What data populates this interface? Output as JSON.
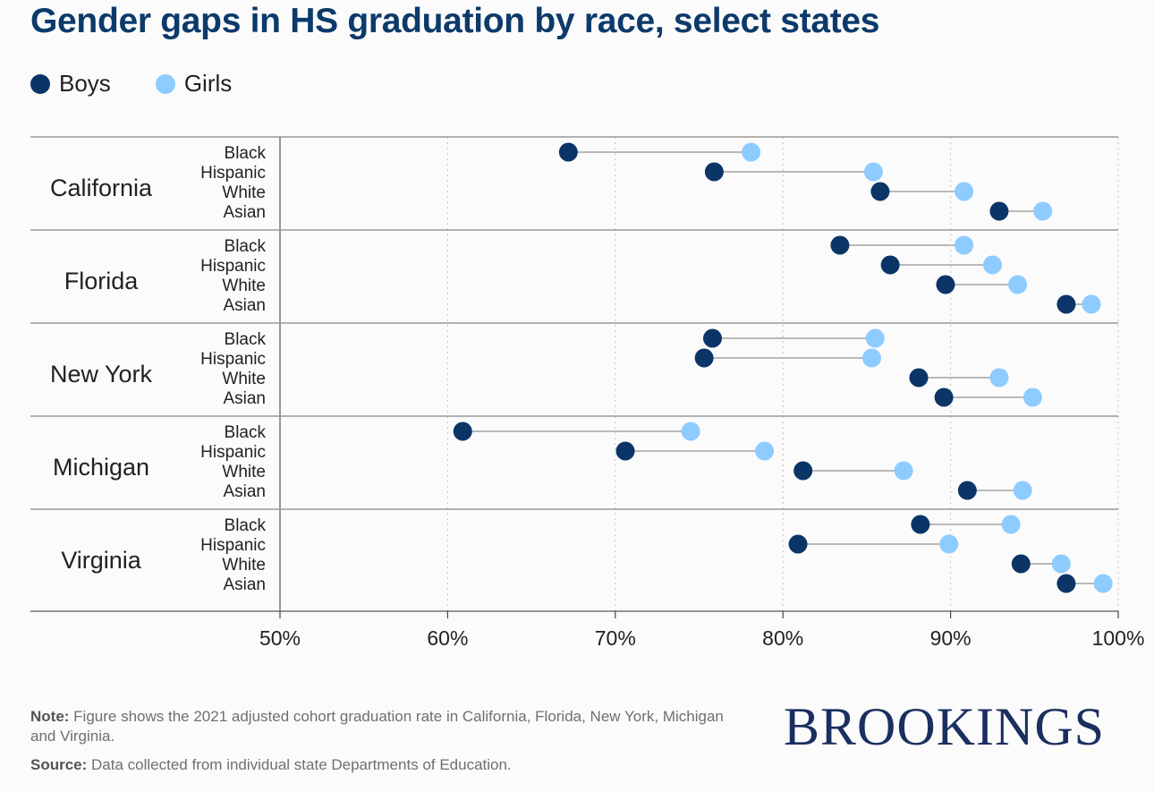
{
  "title": "Gender gaps in HS graduation by race, select states",
  "legend": [
    {
      "label": "Boys",
      "color": "#0b3567"
    },
    {
      "label": "Girls",
      "color": "#8ecbff"
    }
  ],
  "footer": {
    "note_label": "Note:",
    "note_text": " Figure shows the 2021 adjusted cohort graduation rate in California, Florida, New York, Michigan and Virginia.",
    "source_label": "Source:",
    "source_text": " Data collected from individual state Departments of Education."
  },
  "logo_text": "BROOKINGS",
  "chart_data": {
    "type": "dumbbell",
    "title": "Gender gaps in HS graduation by race, select states",
    "x_ticks": [
      "50%",
      "60%",
      "70%",
      "80%",
      "90%",
      "100%"
    ],
    "xlim": [
      50,
      100
    ],
    "grid": "vertical dotted",
    "legend_position": "top-left",
    "series": [
      {
        "name": "Boys",
        "color": "#0b3567"
      },
      {
        "name": "Girls",
        "color": "#8ecbff"
      }
    ],
    "groups": [
      {
        "state": "California",
        "rows": [
          {
            "race": "Black",
            "boys": 67.2,
            "girls": 78.1
          },
          {
            "race": "Hispanic",
            "boys": 75.9,
            "girls": 85.4
          },
          {
            "race": "White",
            "boys": 85.8,
            "girls": 90.8
          },
          {
            "race": "Asian",
            "boys": 92.9,
            "girls": 95.5
          }
        ]
      },
      {
        "state": "Florida",
        "rows": [
          {
            "race": "Black",
            "boys": 83.4,
            "girls": 90.8
          },
          {
            "race": "Hispanic",
            "boys": 86.4,
            "girls": 92.5
          },
          {
            "race": "White",
            "boys": 89.7,
            "girls": 94.0
          },
          {
            "race": "Asian",
            "boys": 96.9,
            "girls": 98.4
          }
        ]
      },
      {
        "state": "New York",
        "rows": [
          {
            "race": "Black",
            "boys": 75.8,
            "girls": 85.5
          },
          {
            "race": "Hispanic",
            "boys": 75.3,
            "girls": 85.3
          },
          {
            "race": "White",
            "boys": 88.1,
            "girls": 92.9
          },
          {
            "race": "Asian",
            "boys": 89.6,
            "girls": 94.9
          }
        ]
      },
      {
        "state": "Michigan",
        "rows": [
          {
            "race": "Black",
            "boys": 60.9,
            "girls": 74.5
          },
          {
            "race": "Hispanic",
            "boys": 70.6,
            "girls": 78.9
          },
          {
            "race": "White",
            "boys": 81.2,
            "girls": 87.2
          },
          {
            "race": "Asian",
            "boys": 91.0,
            "girls": 94.3
          }
        ]
      },
      {
        "state": "Virginia",
        "rows": [
          {
            "race": "Black",
            "boys": 88.2,
            "girls": 93.6
          },
          {
            "race": "Hispanic",
            "boys": 80.9,
            "girls": 89.9
          },
          {
            "race": "White",
            "boys": 94.2,
            "girls": 96.6
          },
          {
            "race": "Asian",
            "boys": 96.9,
            "girls": 99.1
          }
        ]
      }
    ]
  }
}
